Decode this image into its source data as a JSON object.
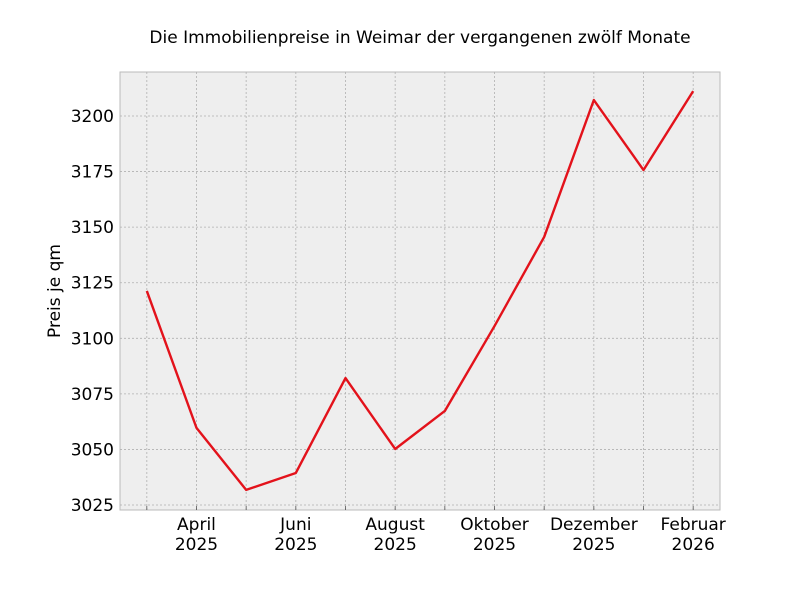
{
  "chart_data": {
    "type": "line",
    "title": "Die Immobilienpreise in Weimar der vergangenen zwölf Monate",
    "xlabel": "",
    "ylabel": "Preis je qm",
    "x": [
      "2025-03",
      "2025-04",
      "2025-05",
      "2025-06",
      "2025-07",
      "2025-08",
      "2025-09",
      "2025-10",
      "2025-11",
      "2025-12",
      "2026-01",
      "2026-02"
    ],
    "series": [
      {
        "name": "Preis je qm",
        "color": "#e3121b",
        "values": [
          3121.3,
          3059.7,
          3031.8,
          3039.4,
          3082.1,
          3050.2,
          3067.3,
          3105.5,
          3145.6,
          3207.2,
          3175.7,
          3211.2
        ]
      }
    ],
    "xtick_labels": [
      {
        "index": 1,
        "line1": "April",
        "line2": "2025"
      },
      {
        "index": 3,
        "line1": "Juni",
        "line2": "2025"
      },
      {
        "index": 5,
        "line1": "August",
        "line2": "2025"
      },
      {
        "index": 7,
        "line1": "Oktober",
        "line2": "2025"
      },
      {
        "index": 9,
        "line1": "Dezember",
        "line2": "2025"
      },
      {
        "index": 11,
        "line1": "Februar",
        "line2": "2026"
      }
    ],
    "yticks": [
      "3025",
      "3050",
      "3075",
      "3100",
      "3125",
      "3150",
      "3175",
      "3200"
    ],
    "ylim": [
      3022.75,
      3219.8
    ],
    "xlim": [
      -0.54,
      11.54
    ],
    "grid": true,
    "background": "#eeeeee"
  }
}
